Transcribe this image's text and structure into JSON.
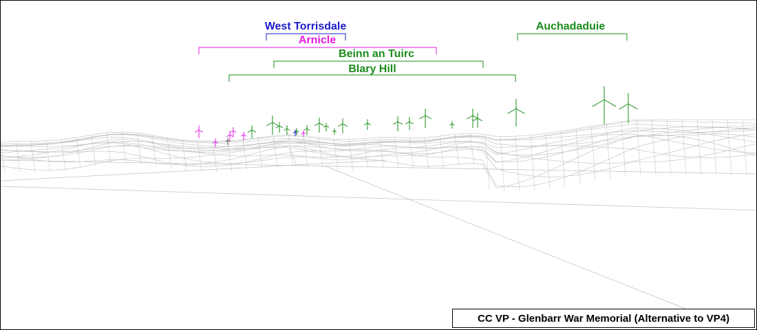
{
  "wind_farms": [
    {
      "key": "west-torrisdale",
      "name": "West Torrisdale",
      "color": "#1a1acc"
    },
    {
      "key": "arnicle",
      "name": "Arnicle",
      "color": "#e619e6"
    },
    {
      "key": "beinn-an-tuirc",
      "name": "Beinn an Tuirc",
      "color": "#1a8c1a"
    },
    {
      "key": "blary-hill",
      "name": "Blary Hill",
      "color": "#1a8c1a"
    },
    {
      "key": "auchadaduie",
      "name": "Auchadaduie",
      "color": "#1a8c1a"
    }
  ],
  "wireframe_color": "#bdbdbd",
  "caption": "CC VP - Glenbarr War Memorial (Alternative to VP4)"
}
